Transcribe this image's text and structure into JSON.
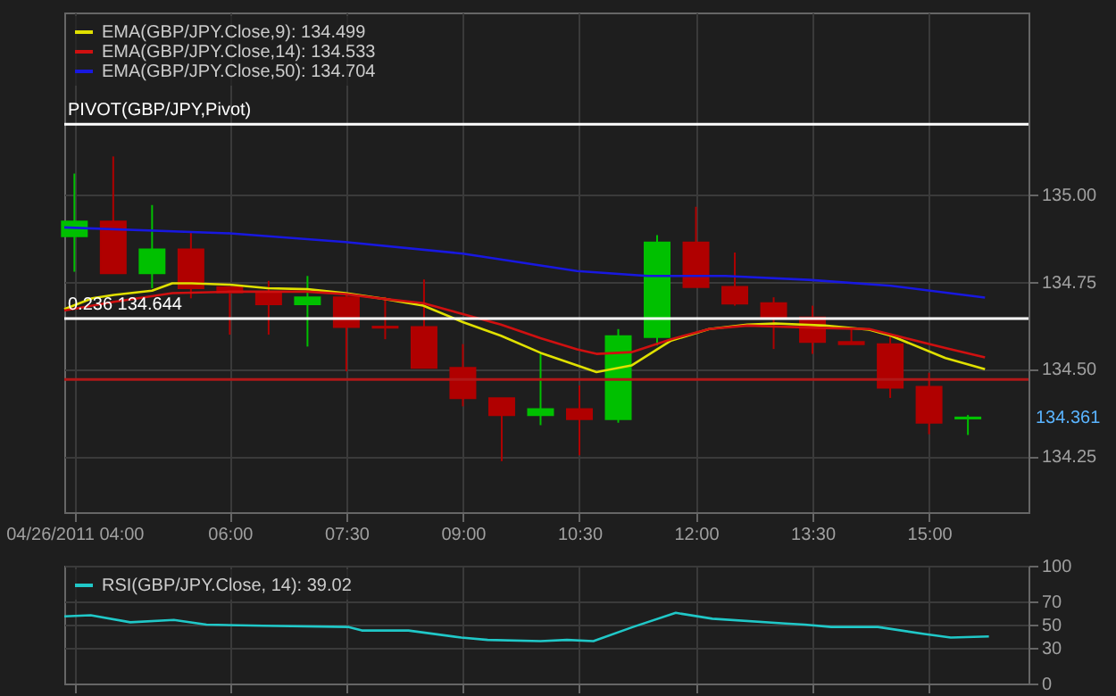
{
  "chart_data": [
    {
      "type": "candlestick",
      "x": [
        4,
        4.5,
        5,
        5.5,
        6,
        6.5,
        7,
        7.5,
        8,
        8.5,
        9,
        9.5,
        10,
        10.5,
        11,
        11.5,
        12,
        12.5,
        13,
        13.5,
        14,
        14.5,
        15,
        15.5
      ],
      "ohlc": [
        [
          134.88,
          135.059,
          134.778,
          134.922
        ],
        [
          134.922,
          135.108,
          134.774,
          134.774
        ],
        [
          134.774,
          134.969,
          134.731,
          134.842
        ],
        [
          134.842,
          134.892,
          134.702,
          134.731
        ],
        [
          134.734,
          134.734,
          134.598,
          134.719
        ],
        [
          134.719,
          134.752,
          134.598,
          134.685
        ],
        [
          134.685,
          134.766,
          134.564,
          134.705
        ],
        [
          134.705,
          134.717,
          134.493,
          134.62
        ],
        [
          134.621,
          134.706,
          134.585,
          134.618
        ],
        [
          134.62,
          134.756,
          134.503,
          134.503
        ],
        [
          134.503,
          134.571,
          134.393,
          134.416
        ],
        [
          134.416,
          134.416,
          134.236,
          134.368
        ],
        [
          134.368,
          134.543,
          134.339,
          134.385
        ],
        [
          134.385,
          134.453,
          134.253,
          134.356
        ],
        [
          134.356,
          134.614,
          134.346,
          134.594
        ],
        [
          134.591,
          134.883,
          134.567,
          134.862
        ],
        [
          134.862,
          134.964,
          134.734,
          134.734
        ],
        [
          134.735,
          134.833,
          134.681,
          134.687
        ],
        [
          134.688,
          134.705,
          134.557,
          134.647
        ],
        [
          134.647,
          134.681,
          134.543,
          134.577
        ],
        [
          134.577,
          134.614,
          134.571,
          134.571
        ],
        [
          134.571,
          134.595,
          134.417,
          134.446
        ],
        [
          134.449,
          134.489,
          134.313,
          134.346
        ],
        [
          134.358,
          134.368,
          134.311,
          134.361
        ]
      ],
      "colors": [
        "#00c000",
        "#b00000",
        "#00c000",
        "#b00000",
        "#b00000",
        "#b00000",
        "#00c000",
        "#b00000",
        "#b00000",
        "#b00000",
        "#b00000",
        "#b00000",
        "#00c000",
        "#b00000",
        "#00c000",
        "#00c000",
        "#b00000",
        "#b00000",
        "#b00000",
        "#b00000",
        "#b00000",
        "#b00000",
        "#b00000",
        "#00c000"
      ],
      "series": [
        {
          "type": "line",
          "name": "EMA(GBP/JPY.Close,9): 134.499",
          "color": "#e0e000",
          "x": [
            3.87,
            4.23,
            4.51,
            5.0,
            5.26,
            5.51,
            6.0,
            6.49,
            7.0,
            7.49,
            8.0,
            8.49,
            9.0,
            9.49,
            10.0,
            10.47,
            10.72,
            11.17,
            11.68,
            12.17,
            12.66,
            13.02,
            13.66,
            14.23,
            14.51,
            15.21,
            15.72
          ],
          "values": [
            134.671,
            134.702,
            134.712,
            134.724,
            134.745,
            134.745,
            134.741,
            134.731,
            134.728,
            134.717,
            134.7,
            134.681,
            134.634,
            134.595,
            134.546,
            134.51,
            134.491,
            134.51,
            134.581,
            134.614,
            134.627,
            134.63,
            134.624,
            134.612,
            134.595,
            134.531,
            134.499
          ]
        },
        {
          "type": "line",
          "name": "EMA(GBP/JPY.Close,14): 134.533",
          "color": "#d01010",
          "x": [
            3.87,
            4.51,
            5.26,
            6.0,
            7.0,
            7.49,
            8.0,
            8.49,
            9.0,
            9.49,
            10.0,
            10.47,
            10.72,
            11.17,
            11.68,
            12.17,
            12.66,
            13.66,
            14.23,
            15.21,
            15.72
          ],
          "values": [
            134.667,
            134.692,
            134.717,
            134.721,
            134.721,
            134.714,
            134.7,
            134.688,
            134.657,
            134.627,
            134.588,
            134.556,
            134.543,
            134.548,
            134.585,
            134.614,
            134.624,
            134.617,
            134.614,
            134.56,
            134.533
          ]
        },
        {
          "type": "line",
          "name": "EMA(GBP/JPY.Close,50): 134.704",
          "color": "#1818e0",
          "x": [
            3.87,
            6.0,
            7.49,
            9.0,
            10.47,
            11.38,
            12.38,
            13.45,
            14.51,
            15.72
          ],
          "values": [
            134.905,
            134.888,
            134.863,
            134.83,
            134.78,
            134.766,
            134.766,
            134.755,
            134.738,
            134.704
          ]
        }
      ],
      "xlim": [
        3.87,
        16.28
      ],
      "xticks": [
        {
          "value": 4,
          "label": "04/26/2011 04:00"
        },
        {
          "value": 6,
          "label": "06:00"
        },
        {
          "value": 7.5,
          "label": "07:30"
        },
        {
          "value": 9,
          "label": "09:00"
        },
        {
          "value": 10.5,
          "label": "10:30"
        },
        {
          "value": 12,
          "label": "12:00"
        },
        {
          "value": 13.5,
          "label": "13:30"
        },
        {
          "value": 15,
          "label": "15:00"
        }
      ],
      "ylim": [
        134.09,
        135.52
      ],
      "yticks": [
        {
          "value": 134.25,
          "label": "134.25"
        },
        {
          "value": 134.5,
          "label": "134.50"
        },
        {
          "value": 134.75,
          "label": "134.75"
        },
        {
          "value": 135,
          "label": "135.00"
        }
      ],
      "grid": true,
      "legend": "top left",
      "ref_lines": [
        {
          "axis": "y",
          "value": 135.2,
          "label": "PIVOT(GBP/JPY,Pivot)",
          "color": "#ffffff"
        },
        {
          "axis": "y",
          "value": 134.644,
          "label": "0.236 134.644",
          "color": "#ffffff"
        },
        {
          "axis": "y",
          "value": 134.47,
          "color": "#b01818"
        }
      ],
      "annotations": [
        "134.361"
      ]
    },
    {
      "type": "line",
      "series": [
        {
          "name": "RSI(GBP/JPY.Close, 14): 39.02",
          "color": "#20c8c8",
          "x": [
            3.87,
            4.21,
            4.72,
            5.28,
            5.7,
            6.43,
            7.53,
            7.7,
            8.3,
            8.98,
            9.32,
            10.0,
            10.34,
            10.68,
            11.19,
            11.74,
            12.21,
            13.15,
            13.4,
            13.74,
            14.34,
            14.94,
            15.28,
            15.77
          ],
          "values": [
            57,
            58,
            52,
            54,
            50,
            49,
            48,
            45,
            45,
            39,
            37,
            36,
            37,
            36,
            48,
            60,
            55,
            51,
            50,
            48,
            48,
            42,
            39,
            40
          ]
        }
      ],
      "xlim": [
        3.87,
        16.28
      ],
      "xticks": [
        4,
        6,
        7.5,
        9,
        10.5,
        12,
        13.5,
        15
      ],
      "ylim": [
        0,
        100
      ],
      "yticks": [
        0,
        30,
        50,
        70,
        100
      ],
      "tick_labels": "y",
      "grid": true,
      "legend": "top left"
    }
  ]
}
